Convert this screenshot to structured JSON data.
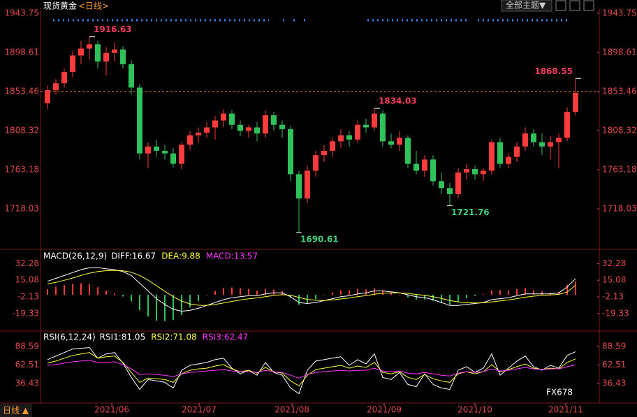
{
  "header": {
    "symbol": "现货黄金",
    "period": "<日线>",
    "theme_button": "全部主题▼"
  },
  "footer": {
    "period": "日线 ▲"
  },
  "watermark": "FX678",
  "chart_data": [
    {
      "type": "candlestick",
      "xlim": [
        0,
        64
      ],
      "ylim": [
        1672.89,
        1949.39
      ],
      "yticks": [
        1718.03,
        1763.18,
        1808.32,
        1853.46,
        1898.61,
        1943.75
      ],
      "price_line": 1853.46,
      "price_line_color": "#ff8c1a",
      "up_color": "#ff3b3b",
      "down_color": "#2fc25b",
      "high_label_color": "#ff3b5c",
      "low_label_color": "#3fd07a",
      "open": [
        1840,
        1855,
        1863,
        1876,
        1895,
        1903,
        1908,
        1888,
        1898,
        1902,
        1885,
        1858,
        1782,
        1790,
        1785,
        1782,
        1770,
        1792,
        1803,
        1806,
        1812,
        1820,
        1828,
        1815,
        1808,
        1812,
        1805,
        1826,
        1815,
        1810,
        1758,
        1730,
        1762,
        1780,
        1785,
        1796,
        1803,
        1798,
        1815,
        1812,
        1828,
        1796,
        1792,
        1800,
        1770,
        1762,
        1775,
        1750,
        1742,
        1735,
        1760,
        1764,
        1758,
        1762,
        1795,
        1770,
        1778,
        1790,
        1805,
        1795,
        1790,
        1795,
        1800,
        1830
      ],
      "high": [
        1860,
        1868,
        1880,
        1900,
        1912,
        1916.63,
        1912,
        1905,
        1910,
        1906,
        1890,
        1862,
        1795,
        1798,
        1792,
        1788,
        1795,
        1808,
        1812,
        1818,
        1825,
        1833,
        1832,
        1820,
        1815,
        1818,
        1832,
        1830,
        1820,
        1814,
        1762,
        1768,
        1785,
        1792,
        1800,
        1810,
        1808,
        1820,
        1822,
        1834.03,
        1832,
        1805,
        1808,
        1803,
        1785,
        1780,
        1780,
        1760,
        1748,
        1765,
        1770,
        1768,
        1765,
        1798,
        1800,
        1782,
        1795,
        1812,
        1810,
        1805,
        1802,
        1805,
        1835,
        1868.55
      ],
      "low": [
        1833,
        1850,
        1858,
        1870,
        1885,
        1890,
        1880,
        1872,
        1888,
        1880,
        1850,
        1775,
        1765,
        1778,
        1775,
        1766,
        1764,
        1786,
        1795,
        1800,
        1798,
        1812,
        1810,
        1802,
        1800,
        1796,
        1800,
        1808,
        1800,
        1750,
        1690.61,
        1725,
        1755,
        1772,
        1778,
        1788,
        1790,
        1795,
        1806,
        1808,
        1790,
        1788,
        1785,
        1765,
        1758,
        1755,
        1745,
        1735,
        1721.76,
        1730,
        1752,
        1752,
        1750,
        1758,
        1765,
        1765,
        1772,
        1785,
        1790,
        1780,
        1775,
        1765,
        1796,
        1826
      ],
      "close": [
        1855,
        1863,
        1876,
        1895,
        1903,
        1908,
        1888,
        1898,
        1902,
        1885,
        1858,
        1782,
        1790,
        1785,
        1782,
        1770,
        1792,
        1803,
        1806,
        1812,
        1820,
        1828,
        1815,
        1808,
        1812,
        1805,
        1826,
        1815,
        1810,
        1758,
        1730,
        1762,
        1780,
        1785,
        1796,
        1803,
        1798,
        1815,
        1812,
        1828,
        1796,
        1792,
        1800,
        1770,
        1762,
        1775,
        1750,
        1742,
        1735,
        1760,
        1764,
        1758,
        1762,
        1795,
        1770,
        1778,
        1790,
        1805,
        1795,
        1790,
        1795,
        1800,
        1830,
        1852
      ]
    },
    {
      "type": "macd",
      "title": "MACD(26,12,9)",
      "xlim": [
        0,
        64
      ],
      "ylim": [
        -36.11,
        43.42
      ],
      "yticks": [
        -19.33,
        -2.13,
        15.08,
        32.28
      ],
      "series": [
        {
          "name": "DIFF:16.67",
          "color": "#ffffff",
          "values": [
            14,
            17,
            20,
            23,
            26,
            28,
            28,
            27,
            26,
            24,
            20,
            12,
            4,
            -4,
            -10,
            -15,
            -17,
            -16,
            -14,
            -11,
            -8,
            -5,
            -3,
            -2,
            -1,
            -1,
            1,
            2,
            2,
            -2,
            -8,
            -9,
            -8,
            -6,
            -4,
            -2,
            -1,
            1,
            2,
            4,
            4,
            3,
            2,
            0,
            -2,
            -3,
            -5,
            -8,
            -11,
            -11,
            -10,
            -9,
            -8,
            -5,
            -4,
            -3,
            -1,
            1,
            1,
            1,
            1,
            2,
            8,
            16.67
          ]
        },
        {
          "name": "DEA:9.88",
          "color": "#ffff33",
          "values": [
            11.2,
            12.9,
            15,
            17.4,
            20,
            22.4,
            24.1,
            25,
            25.3,
            24.9,
            23.4,
            20,
            15.2,
            9.4,
            3.6,
            -2,
            -6.5,
            -9.4,
            -10.8,
            -10.9,
            -10,
            -8.5,
            -6.8,
            -5.4,
            -4.1,
            -3.2,
            -1.9,
            -0.7,
            0.1,
            -0.5,
            -2.8,
            -4.7,
            -5.7,
            -5.8,
            -5.3,
            -4.3,
            -3.3,
            -2,
            -0.8,
            0.6,
            1.6,
            2,
            2,
            1.4,
            0.4,
            -0.6,
            -1.9,
            -3.7,
            -5.9,
            -7.4,
            -8.2,
            -8.4,
            -8.3,
            -7.3,
            -6.3,
            -5.3,
            -4,
            -2.5,
            -1.4,
            -0.7,
            -0.2,
            0.5,
            2.8,
            9.88
          ]
        },
        {
          "name": "MACD:13.57",
          "color": "#ff33ff",
          "style": "bar",
          "up_color": "#ff3b3b",
          "down_color": "#2fc25b",
          "values": [
            5.6,
            8.2,
            10,
            11.2,
            12,
            11.2,
            7.8,
            4,
            1.4,
            -1.8,
            -6.8,
            -16,
            -22.4,
            -26.8,
            -27.2,
            -26,
            -21,
            -13.2,
            -6.4,
            -0.2,
            4,
            7,
            7.6,
            6.8,
            6.2,
            4.4,
            5.8,
            5.4,
            3.8,
            -3,
            -10.4,
            -8.6,
            -4.6,
            -0.4,
            2.6,
            4.6,
            4.6,
            6,
            5.6,
            6.8,
            4.8,
            2,
            0,
            -2.8,
            -4.8,
            -4.8,
            -6.2,
            -8.6,
            -10.2,
            -7.2,
            -3.6,
            -1.2,
            0.6,
            4.6,
            4.6,
            4.6,
            6,
            7,
            4.8,
            3.4,
            2.4,
            3,
            10.4,
            13.57
          ]
        }
      ]
    },
    {
      "type": "line",
      "title": "RSI(6,12,24)",
      "xlim": [
        0,
        64
      ],
      "ylim": [
        10.8,
        106.3
      ],
      "yticks": [
        36.43,
        62.51,
        88.59
      ],
      "xticks": [
        {
          "value": 8.17,
          "label": "2021/06"
        },
        {
          "value": 18.58,
          "label": "2021/07"
        },
        {
          "value": 29.67,
          "label": "2021/08"
        },
        {
          "value": 40.67,
          "label": "2021/09"
        },
        {
          "value": 51.5,
          "label": "2021/10"
        },
        {
          "value": 62.33,
          "label": "2021/11"
        }
      ],
      "series": [
        {
          "name": "RSI1:81.05",
          "color": "#ffffff",
          "values": [
            70,
            75,
            80,
            85,
            86,
            87,
            72,
            78,
            80,
            65,
            45,
            28,
            42,
            40,
            38,
            30,
            55,
            62,
            64,
            66,
            70,
            72,
            58,
            50,
            55,
            48,
            66,
            52,
            48,
            30,
            22,
            55,
            68,
            70,
            72,
            74,
            62,
            70,
            64,
            78,
            45,
            42,
            52,
            35,
            32,
            50,
            35,
            30,
            28,
            55,
            60,
            52,
            58,
            78,
            48,
            58,
            68,
            75,
            60,
            55,
            62,
            58,
            76,
            81.05
          ]
        },
        {
          "name": "RSI2:71.08",
          "color": "#ffff33",
          "values": [
            65,
            68,
            72,
            76,
            78,
            80,
            72,
            74,
            75,
            66,
            52,
            38,
            44,
            43,
            42,
            38,
            50,
            55,
            57,
            58,
            61,
            63,
            57,
            53,
            55,
            51,
            59,
            53,
            51,
            40,
            33,
            48,
            56,
            58,
            60,
            62,
            58,
            61,
            59,
            66,
            52,
            50,
            53,
            45,
            42,
            49,
            43,
            40,
            38,
            50,
            53,
            50,
            53,
            63,
            53,
            56,
            60,
            64,
            58,
            56,
            58,
            57,
            66,
            71.08
          ]
        },
        {
          "name": "RSI3:62.47",
          "color": "#ff33ff",
          "values": [
            62,
            63,
            65,
            67,
            68,
            69,
            66,
            66,
            67,
            63,
            57,
            49,
            50,
            49,
            48,
            46,
            50,
            52,
            53,
            54,
            55,
            56,
            54,
            53,
            53,
            52,
            55,
            53,
            52,
            48,
            44,
            49,
            52,
            53,
            54,
            55,
            54,
            55,
            55,
            58,
            54,
            53,
            54,
            51,
            50,
            52,
            50,
            48,
            47,
            51,
            53,
            52,
            53,
            57,
            54,
            55,
            57,
            59,
            57,
            56,
            57,
            57,
            60,
            62.47
          ]
        }
      ]
    }
  ]
}
